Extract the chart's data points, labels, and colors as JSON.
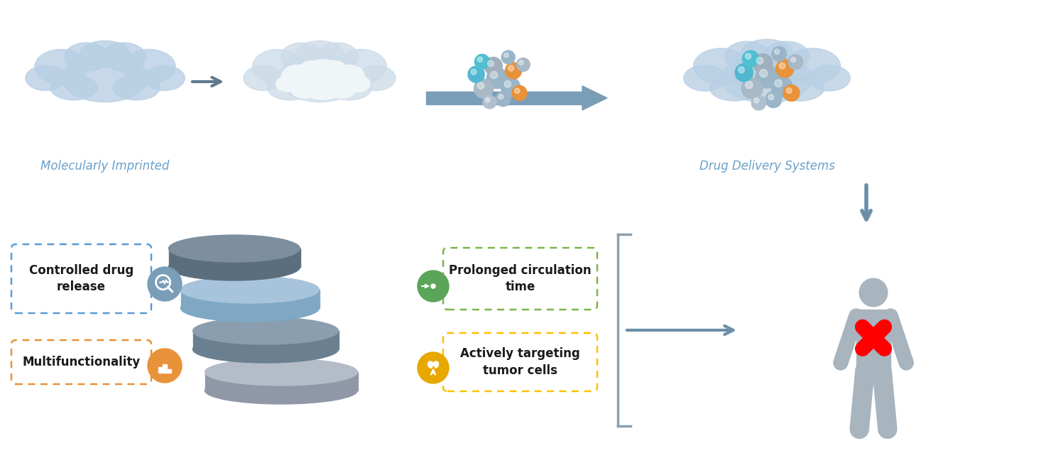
{
  "bg_color": "#ffffff",
  "top_label_left": "Molecularly Imprinted",
  "top_label_right": "Drug Delivery Systems",
  "box1_text": "Controlled drug\nrelease",
  "box1_border": "#5b9bd5",
  "box2_text": "Multifunctionality",
  "box2_border": "#e8923a",
  "box3_text": "Prolonged circulation\ntime",
  "box3_border": "#7ab648",
  "box4_text": "Actively targeting\ntumor cells",
  "box4_border": "#ffc000",
  "icon1_color": "#7a9db8",
  "icon2_color": "#e8923a",
  "icon3_color": "#5aa55a",
  "icon4_color": "#e8a800",
  "cloud1_color": "#b8cfe4",
  "cloud2_color": "#cddce9",
  "cloud3_color": "#b8cfe4",
  "person_color": "#a8b4be",
  "arrow_color": "#6b8fa8",
  "bracket_color": "#8aa0b0",
  "label_color": "#6ba0c8",
  "text_color": "#1a1a1a",
  "disk1_top": "#7d8f9e",
  "disk1_side": "#5a6e7e",
  "disk2_top": "#a8c4dc",
  "disk2_side": "#7fa8c4",
  "disk3_top": "#8a9eb0",
  "disk3_side": "#6a8090",
  "disk4_top": "#b4bcc8",
  "disk4_side": "#9098a8"
}
